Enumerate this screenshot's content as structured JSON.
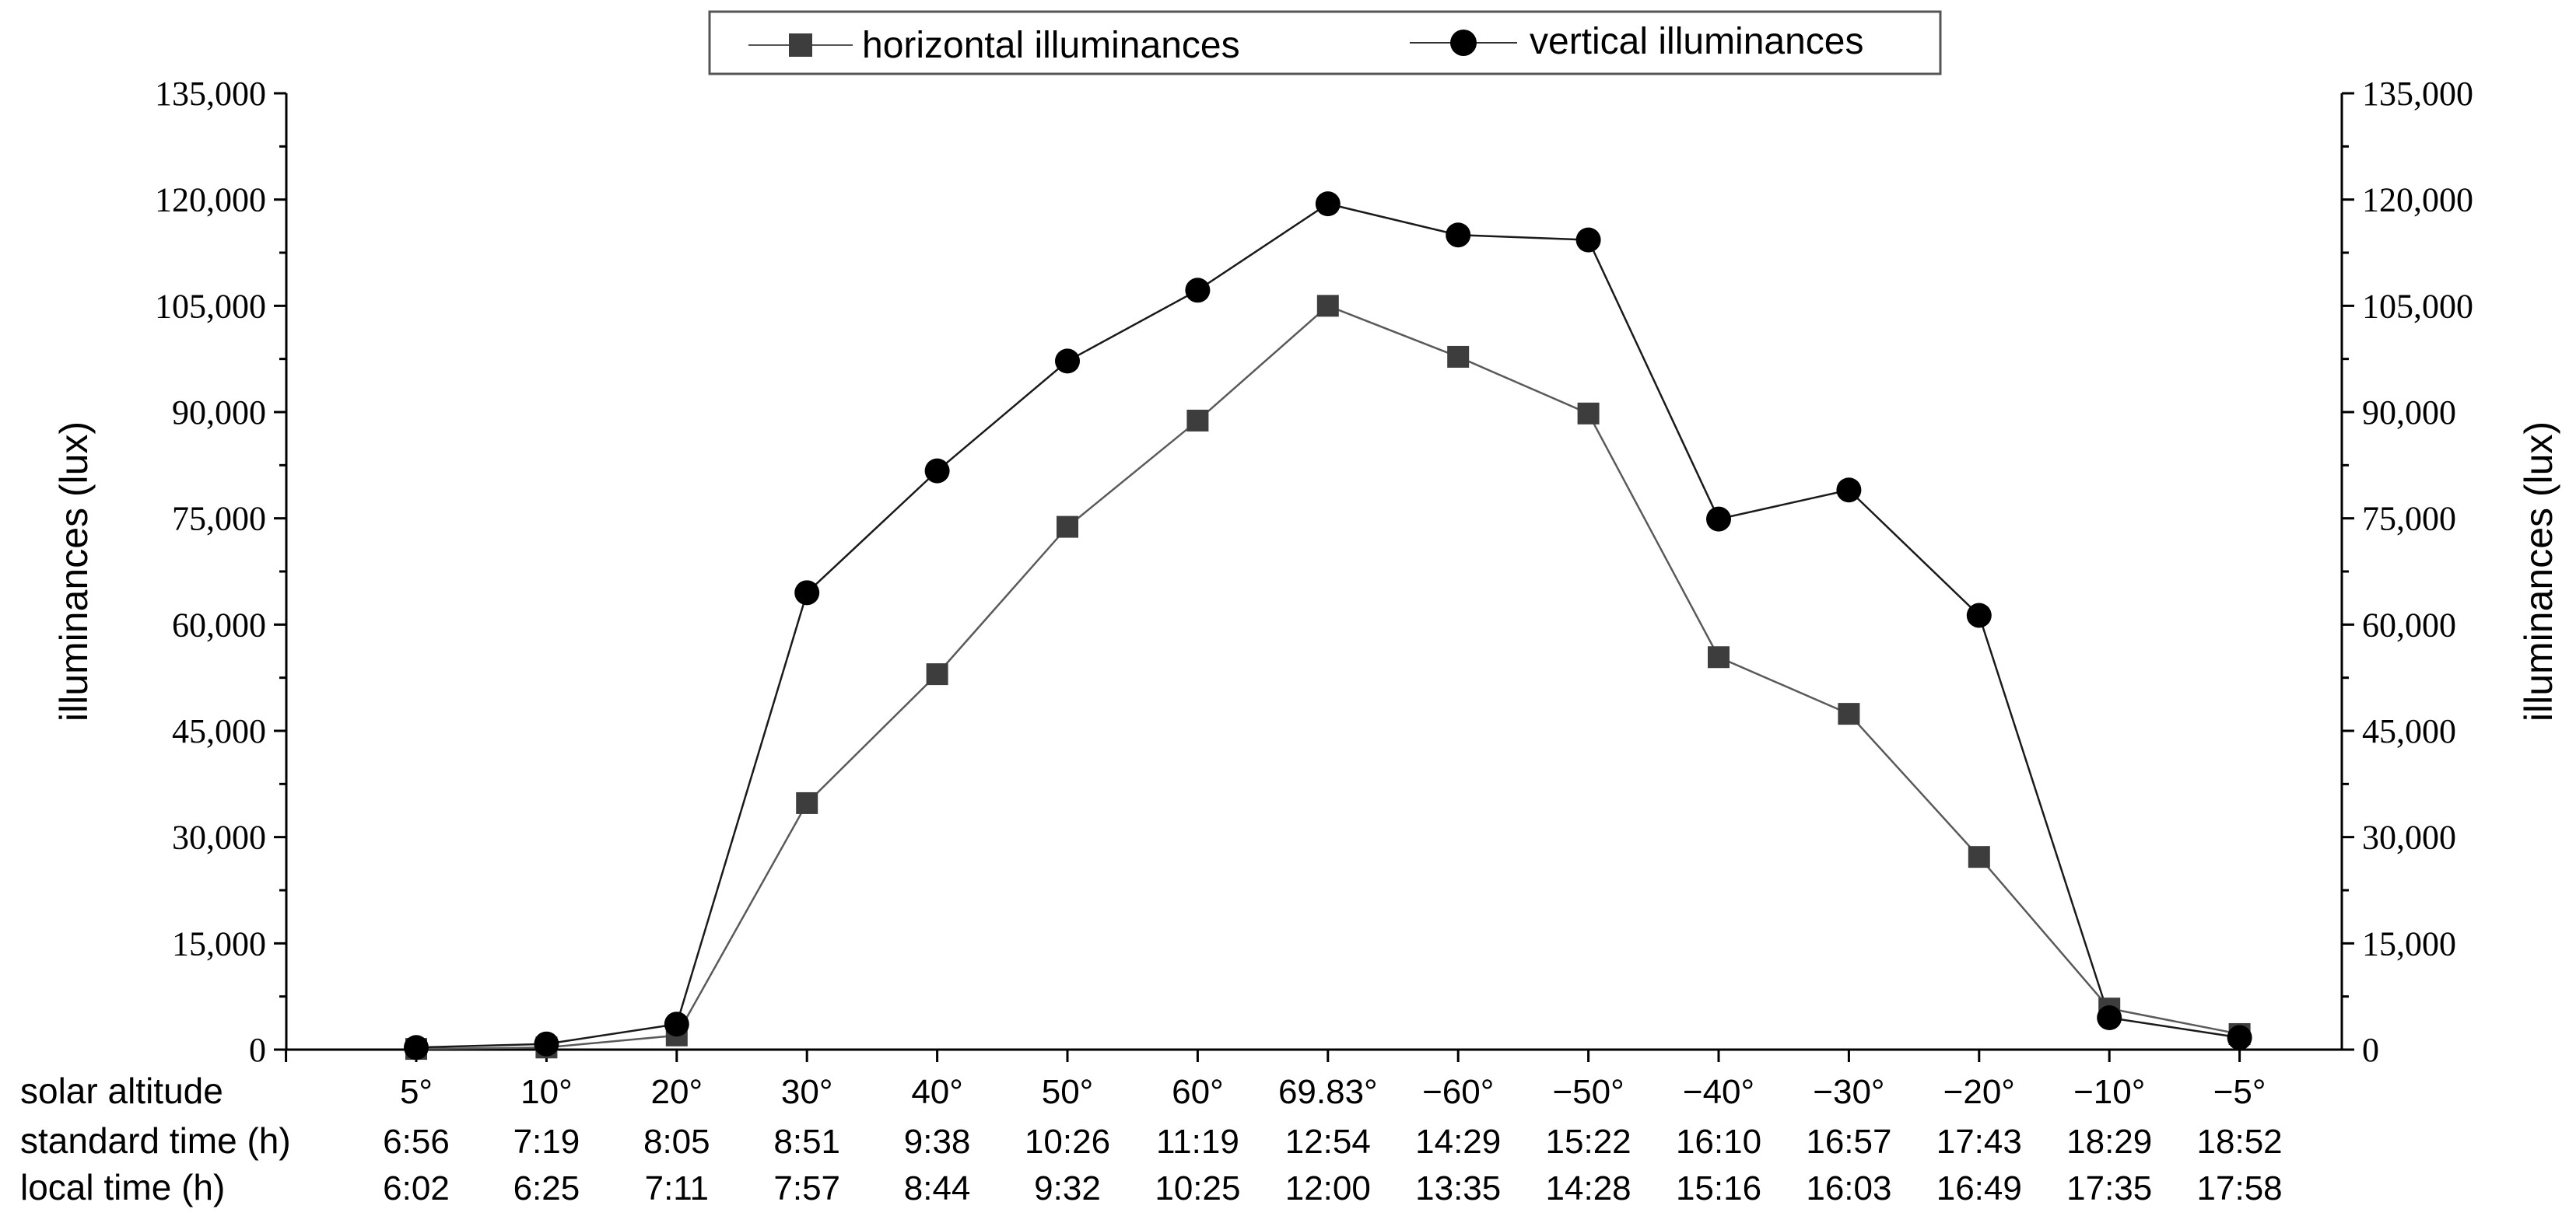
{
  "chart_data": {
    "type": "line",
    "categories": [
      "5°",
      "10°",
      "20°",
      "30°",
      "40°",
      "50°",
      "60°",
      "69.83°",
      "−60°",
      "−50°",
      "−40°",
      "−30°",
      "−20°",
      "−10°",
      "−5°"
    ],
    "category_rows": [
      {
        "label": "solar altitude",
        "values": [
          "5°",
          "10°",
          "20°",
          "30°",
          "40°",
          "50°",
          "60°",
          "69.83°",
          "−60°",
          "−50°",
          "−40°",
          "−30°",
          "−20°",
          "−10°",
          "−5°"
        ]
      },
      {
        "label": "standard time (h)",
        "values": [
          "6:56",
          "7:19",
          "8:05",
          "8:51",
          "9:38",
          "10:26",
          "11:19",
          "12:54",
          "14:29",
          "15:22",
          "16:10",
          "16:57",
          "17:43",
          "18:29",
          "18:52"
        ]
      },
      {
        "label": "local time (h)",
        "values": [
          "6:02",
          "6:25",
          "7:11",
          "7:57",
          "8:44",
          "9:32",
          "10:25",
          "12:00",
          "13:35",
          "14:28",
          "15:16",
          "16:03",
          "16:49",
          "17:35",
          "17:58"
        ]
      }
    ],
    "series": [
      {
        "name": "horizontal illuminances",
        "marker": "square",
        "color": "#3d3d3d",
        "values": [
          100,
          300,
          2000,
          34800,
          53000,
          73800,
          88800,
          105000,
          97800,
          89800,
          55400,
          47400,
          27200,
          5800,
          2200
        ]
      },
      {
        "name": "vertical illuminances",
        "marker": "circle",
        "color": "#000000",
        "values": [
          300,
          800,
          3600,
          64500,
          81700,
          97200,
          107200,
          119400,
          115000,
          114300,
          74900,
          79000,
          61300,
          4500,
          1700
        ]
      }
    ],
    "ylabel": "illuminances (lux)",
    "ylabel_right": "illuminances (lux)",
    "ylim": [
      0,
      135000
    ],
    "yticks": [
      "0",
      "15,000",
      "30,000",
      "45,000",
      "60,000",
      "75,000",
      "90,000",
      "105,000",
      "120,000",
      "135,000"
    ],
    "ytick_values": [
      0,
      15000,
      30000,
      45000,
      60000,
      75000,
      90000,
      105000,
      120000,
      135000
    ],
    "grid": false,
    "legend": "top-center"
  }
}
